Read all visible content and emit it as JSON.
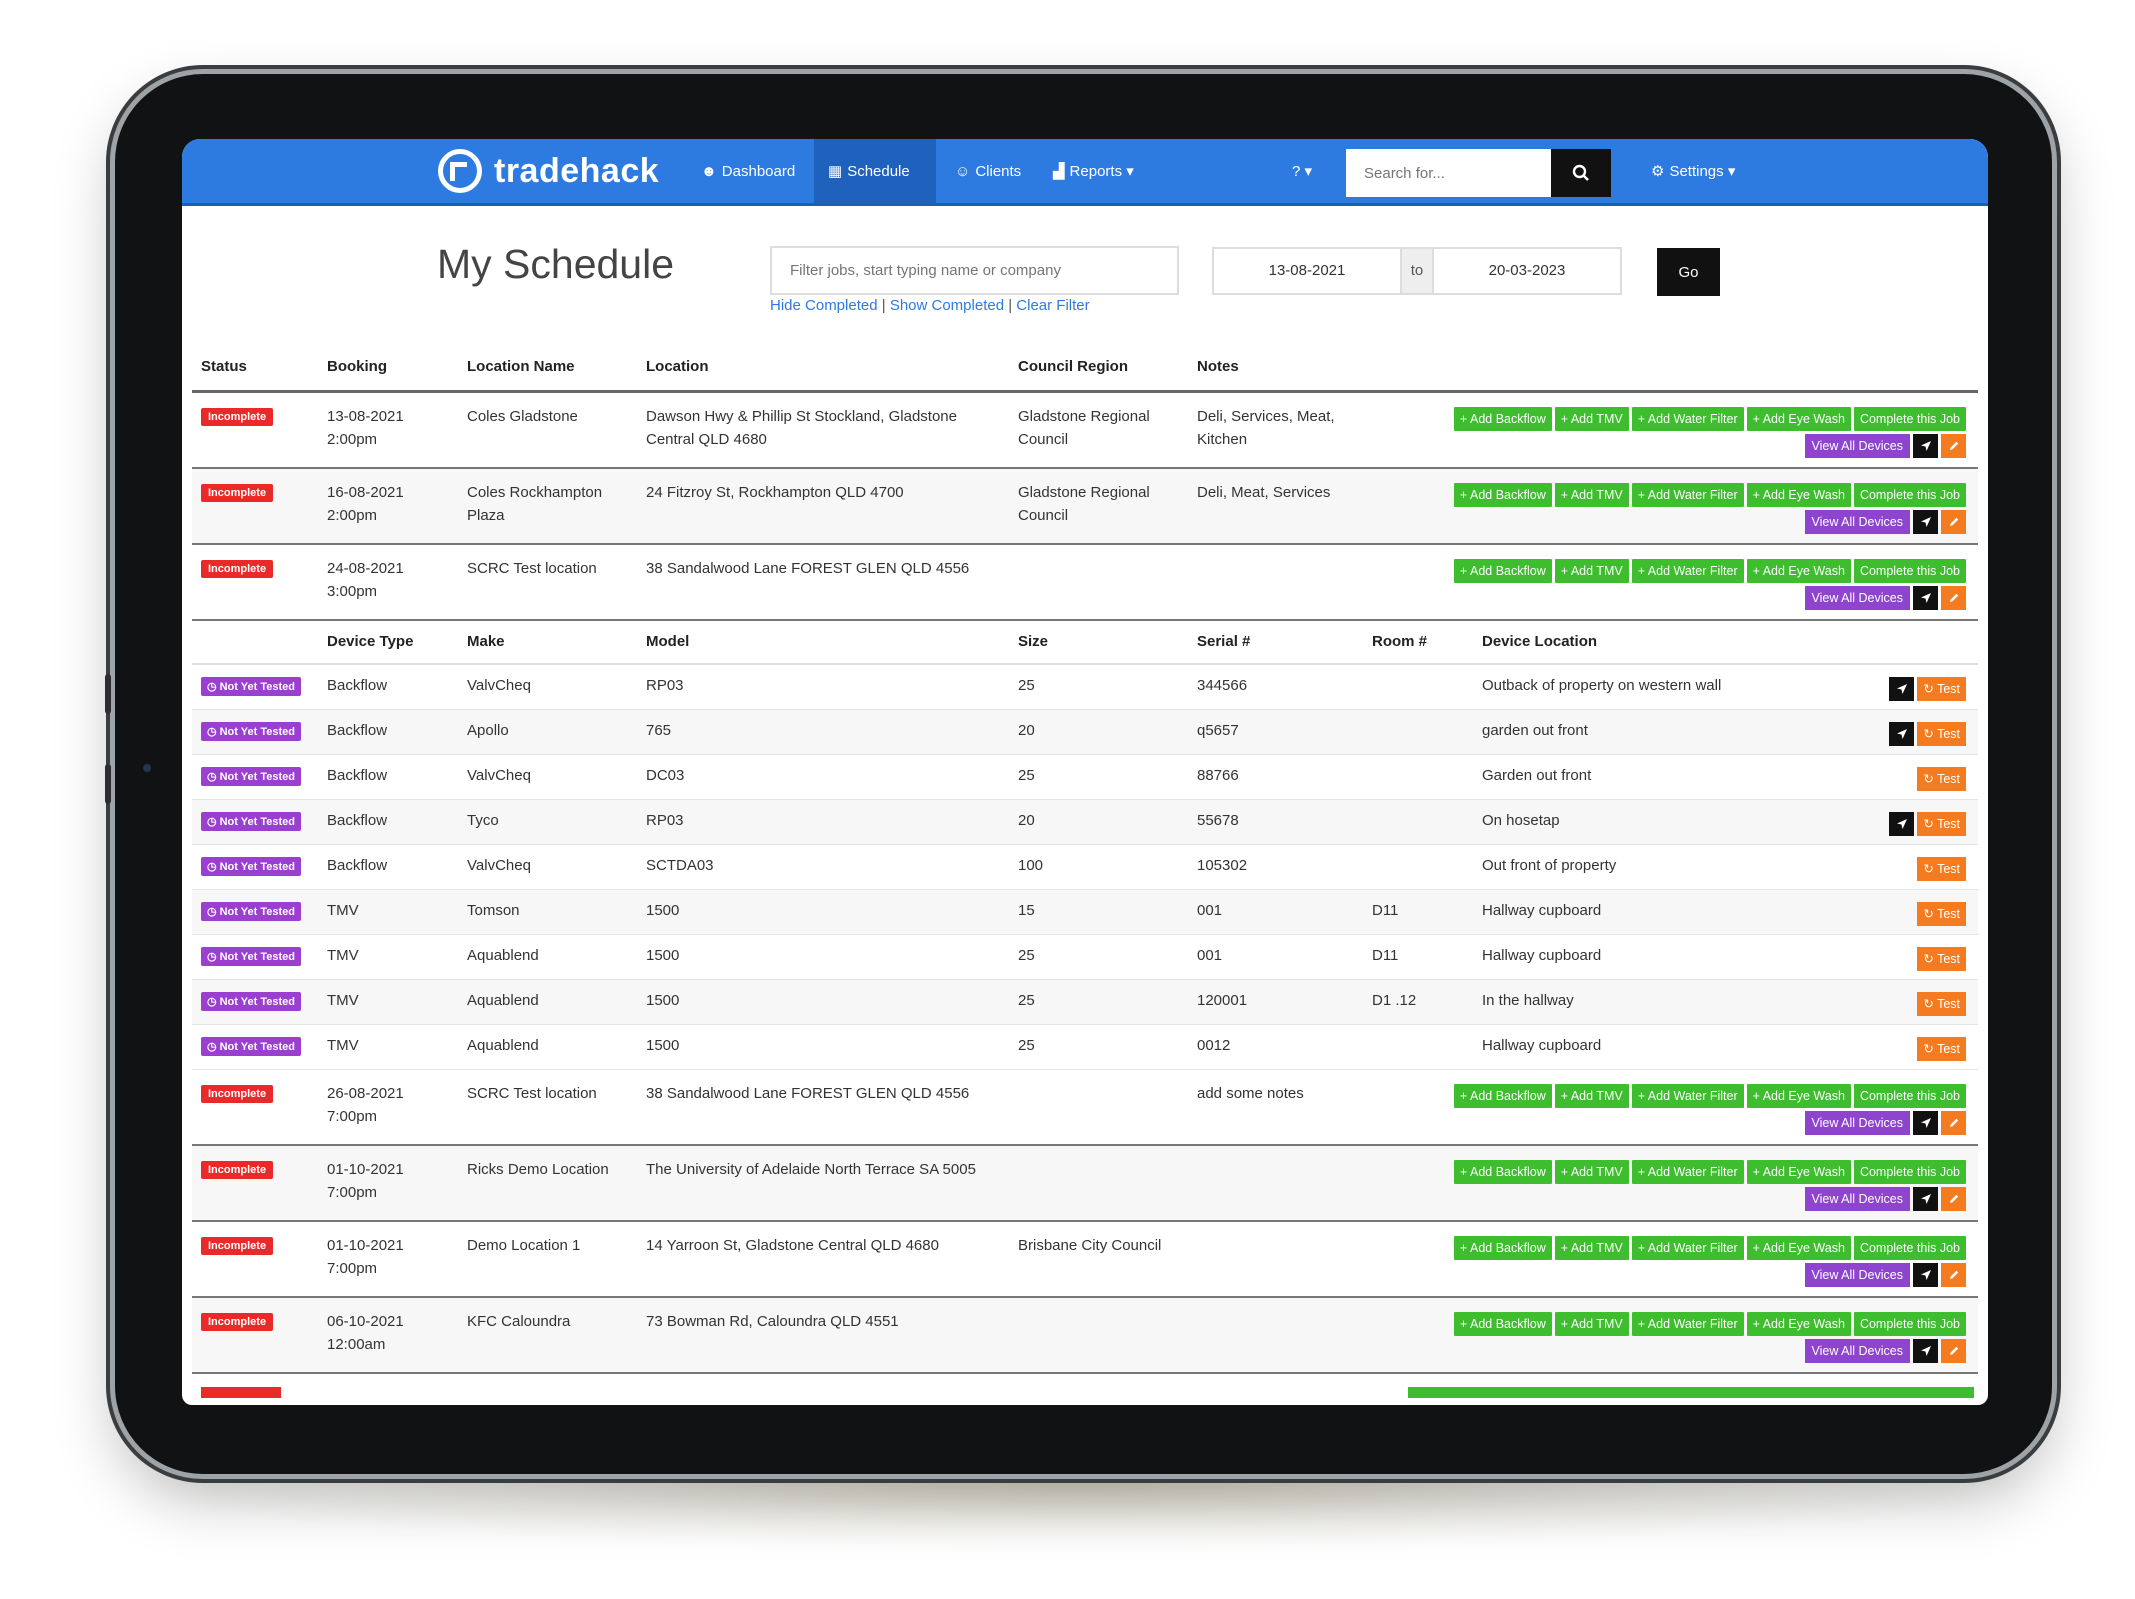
{
  "nav": {
    "brand": "tradehack",
    "items": [
      {
        "icon": "☻",
        "label": "Dashboard"
      },
      {
        "icon": "▦",
        "label": "Schedule"
      },
      {
        "icon": "☺",
        "label": "Clients"
      },
      {
        "icon": "▟",
        "label": "Reports ▾"
      }
    ],
    "help": "? ▾",
    "search_placeholder": "Search for...",
    "settings": "Settings ▾"
  },
  "page": {
    "title": "My Schedule",
    "filter_placeholder": "Filter jobs, start typing name or company",
    "links": {
      "hide": "Hide Completed",
      "show": "Show Completed",
      "clear": "Clear Filter",
      "sep": "|"
    },
    "date_from": "13-08-2021",
    "date_to_label": "to",
    "date_to": "20-03-2023",
    "go": "Go"
  },
  "columns": {
    "status": "Status",
    "booking": "Booking",
    "location_name": "Location Name",
    "location": "Location",
    "council": "Council Region",
    "notes": "Notes"
  },
  "actions": {
    "add_backflow": "+ Add Backflow",
    "add_tmv": "+ Add TMV",
    "add_water": "+ Add Water Filter",
    "add_eye": "+ Add Eye Wash",
    "complete": "Complete this Job",
    "view_devices": "View All Devices"
  },
  "jobs_top": [
    {
      "status": "Incomplete",
      "date": "13-08-2021",
      "time": "2:00pm",
      "name1": "Coles Gladstone",
      "name2": "",
      "loc1": "Dawson Hwy & Phillip St Stockland, Gladstone",
      "loc2": "Central QLD 4680",
      "council1": "Gladstone Regional",
      "council2": "Council",
      "notes1": "Deli, Services, Meat,",
      "notes2": "Kitchen"
    },
    {
      "status": "Incomplete",
      "date": "16-08-2021",
      "time": "2:00pm",
      "name1": "Coles Rockhampton",
      "name2": "Plaza",
      "loc1": "24 Fitzroy St, Rockhampton QLD 4700",
      "loc2": "",
      "council1": "Gladstone Regional",
      "council2": "Council",
      "notes1": "Deli, Meat, Services",
      "notes2": ""
    },
    {
      "status": "Incomplete",
      "date": "24-08-2021",
      "time": "3:00pm",
      "name1": "SCRC Test location",
      "name2": "",
      "loc1": "38 Sandalwood Lane FOREST GLEN QLD 4556",
      "loc2": "",
      "council1": "",
      "council2": "",
      "notes1": "",
      "notes2": ""
    }
  ],
  "device_columns": {
    "type": "Device Type",
    "make": "Make",
    "model": "Model",
    "size": "Size",
    "serial": "Serial #",
    "room": "Room #",
    "location": "Device Location"
  },
  "device_status": "Not Yet Tested",
  "test_label": "Test",
  "devices": [
    {
      "type": "Backflow",
      "make": "ValvCheq",
      "model": "RP03",
      "size": "25",
      "serial": "344566",
      "room": "",
      "location": "Outback of property on western wall",
      "nav": true
    },
    {
      "type": "Backflow",
      "make": "Apollo",
      "model": "765",
      "size": "20",
      "serial": "q5657",
      "room": "",
      "location": "garden out front",
      "nav": true
    },
    {
      "type": "Backflow",
      "make": "ValvCheq",
      "model": "DC03",
      "size": "25",
      "serial": "88766",
      "room": "",
      "location": "Garden out front",
      "nav": false
    },
    {
      "type": "Backflow",
      "make": "Tyco",
      "model": "RP03",
      "size": "20",
      "serial": "55678",
      "room": "",
      "location": "On hosetap",
      "nav": true
    },
    {
      "type": "Backflow",
      "make": "ValvCheq",
      "model": "SCTDA03",
      "size": "100",
      "serial": "105302",
      "room": "",
      "location": "Out front of property",
      "nav": false
    },
    {
      "type": "TMV",
      "make": "Tomson",
      "model": "1500",
      "size": "15",
      "serial": "001",
      "room": "D11",
      "location": "Hallway cupboard",
      "nav": false
    },
    {
      "type": "TMV",
      "make": "Aquablend",
      "model": "1500",
      "size": "25",
      "serial": "001",
      "room": "D11",
      "location": "Hallway cupboard",
      "nav": false
    },
    {
      "type": "TMV",
      "make": "Aquablend",
      "model": "1500",
      "size": "25",
      "serial": "120001",
      "room": "D1 .12",
      "location": "In the hallway",
      "nav": false
    },
    {
      "type": "TMV",
      "make": "Aquablend",
      "model": "1500",
      "size": "25",
      "serial": "0012",
      "room": "",
      "location": "Hallway cupboard",
      "nav": false
    }
  ],
  "jobs_bottom": [
    {
      "status": "Incomplete",
      "date": "26-08-2021",
      "time": "7:00pm",
      "name1": "SCRC Test location",
      "name2": "",
      "loc1": "38 Sandalwood Lane FOREST GLEN QLD 4556",
      "loc2": "",
      "council1": "",
      "council2": "",
      "notes1": "add some notes",
      "notes2": ""
    },
    {
      "status": "Incomplete",
      "date": "01-10-2021",
      "time": "7:00pm",
      "name1": "Ricks Demo Location",
      "name2": "",
      "loc1": "The University of Adelaide North Terrace SA 5005",
      "loc2": "",
      "council1": "",
      "council2": "",
      "notes1": "",
      "notes2": ""
    },
    {
      "status": "Incomplete",
      "date": "01-10-2021",
      "time": "7:00pm",
      "name1": "Demo Location 1",
      "name2": "",
      "loc1": "14 Yarroon St, Gladstone Central QLD 4680",
      "loc2": "",
      "council1": "Brisbane City Council",
      "council2": "",
      "notes1": "",
      "notes2": ""
    },
    {
      "status": "Incomplete",
      "date": "06-10-2021",
      "time": "12:00am",
      "name1": "KFC Caloundra",
      "name2": "",
      "loc1": "73 Bowman Rd, Caloundra QLD 4551",
      "loc2": "",
      "council1": "",
      "council2": "",
      "notes1": "",
      "notes2": ""
    }
  ],
  "colors": {
    "nav": "#2d7be0",
    "incomplete": "#ea2a2a",
    "not_tested": "#9b3fd1",
    "add": "#3ebd2f",
    "view": "#8e44ce",
    "test": "#f47b20"
  }
}
